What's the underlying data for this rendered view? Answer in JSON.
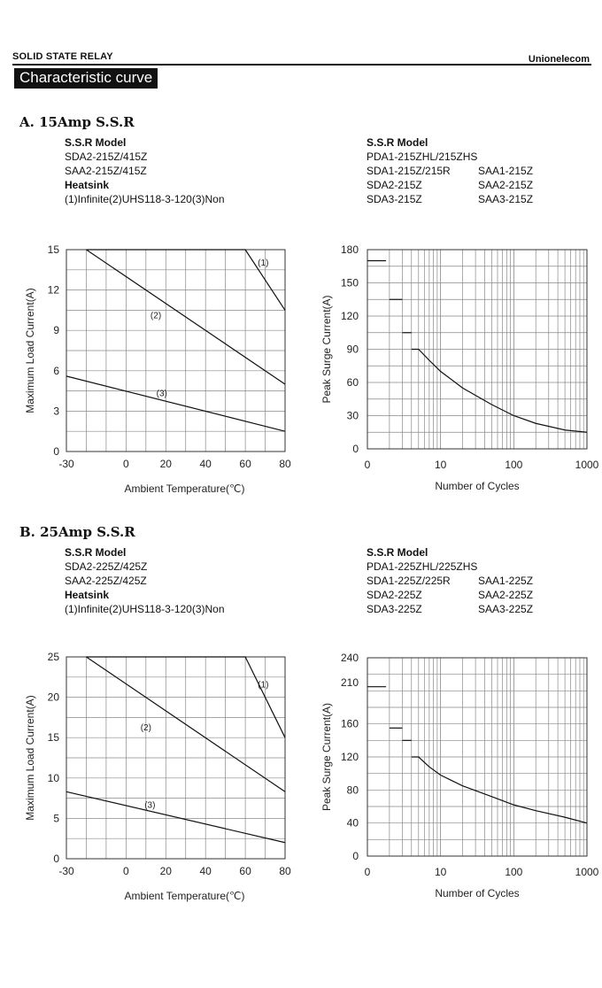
{
  "header": {
    "left": "SOLID STATE RELAY",
    "right": "Unionelecom"
  },
  "page_title": "Characteristic curve",
  "sections": [
    {
      "title": "A. 15Amp S.S.R",
      "left": {
        "model_heading": "S.S.R Model",
        "models": [
          "SDA2-215Z/415Z",
          "SAA2-215Z/415Z"
        ],
        "heatsink_heading": "Heatsink",
        "heatsink": "(1)Infinite(2)UHS118-3-120(3)Non"
      },
      "right": {
        "model_heading": "S.S.R Model",
        "line1": "PDA1-215ZHL/215ZHS",
        "rows": [
          [
            "SDA1-215Z/215R",
            "SAA1-215Z"
          ],
          [
            "SDA2-215Z",
            "SAA2-215Z"
          ],
          [
            "SDA3-215Z",
            "SAA3-215Z"
          ]
        ]
      }
    },
    {
      "title": "B. 25Amp S.S.R",
      "left": {
        "model_heading": "S.S.R Model",
        "models": [
          "SDA2-225Z/425Z",
          "SAA2-225Z/425Z"
        ],
        "heatsink_heading": "Heatsink",
        "heatsink": "(1)Infinite(2)UHS118-3-120(3)Non"
      },
      "right": {
        "model_heading": "S.S.R Model",
        "line1": "PDA1-225ZHL/225ZHS",
        "rows": [
          [
            "SDA1-225Z/225R",
            "SAA1-225Z"
          ],
          [
            "SDA2-225Z",
            "SAA2-225Z"
          ],
          [
            "SDA3-225Z",
            "SAA3-225Z"
          ]
        ]
      }
    }
  ],
  "chart_data": [
    {
      "type": "line",
      "xlabel": "Ambient Temperature(℃)",
      "ylabel": "Maximum Load Current(A)",
      "xlim": [
        -30,
        80
      ],
      "ylim": [
        0,
        15
      ],
      "xticks": [
        "-30",
        "0",
        "20",
        "40",
        "60",
        "80"
      ],
      "yticks": [
        "0",
        "3",
        "6",
        "9",
        "12",
        "15"
      ],
      "grid": true,
      "series": [
        {
          "name": "(1)",
          "x": [
            -20,
            60,
            80
          ],
          "y": [
            15,
            15,
            10.5
          ]
        },
        {
          "name": "(2)",
          "x": [
            -20,
            80
          ],
          "y": [
            15,
            5
          ]
        },
        {
          "name": "(3)",
          "x": [
            -30,
            80
          ],
          "y": [
            5.6,
            1.5
          ]
        }
      ]
    },
    {
      "type": "line",
      "xlabel": "Number of Cycles",
      "ylabel": "Peak Surge Current(A)",
      "xscale": "log",
      "xlim": [
        1,
        1000
      ],
      "ylim": [
        0,
        180
      ],
      "xticks": [
        "0",
        "10",
        "100",
        "1000"
      ],
      "yticks": [
        "0",
        "30",
        "60",
        "90",
        "120",
        "150",
        "180"
      ],
      "grid": true,
      "series": [
        {
          "x": [
            1,
            1.8
          ],
          "y": [
            170,
            170
          ]
        },
        {
          "x": [
            2,
            3
          ],
          "y": [
            135,
            135
          ]
        },
        {
          "x": [
            3,
            4
          ],
          "y": [
            105,
            105
          ]
        },
        {
          "x": [
            4,
            5,
            7,
            10,
            20,
            50,
            100,
            200,
            500,
            1000
          ],
          "y": [
            90,
            90,
            80,
            70,
            55,
            40,
            30,
            23,
            17,
            15
          ]
        }
      ]
    },
    {
      "type": "line",
      "xlabel": "Ambient Temperature(℃)",
      "ylabel": "Maximum Load Current(A)",
      "xlim": [
        -30,
        80
      ],
      "ylim": [
        0,
        25
      ],
      "xticks": [
        "-30",
        "0",
        "20",
        "40",
        "60",
        "80"
      ],
      "yticks": [
        "0",
        "5",
        "10",
        "15",
        "20",
        "25"
      ],
      "grid": true,
      "series": [
        {
          "name": "(1)",
          "x": [
            -20,
            60,
            80
          ],
          "y": [
            25,
            25,
            15
          ]
        },
        {
          "name": "(2)",
          "x": [
            -20,
            80
          ],
          "y": [
            25,
            8.3
          ]
        },
        {
          "name": "(3)",
          "x": [
            -30,
            80
          ],
          "y": [
            8.3,
            2
          ]
        }
      ]
    },
    {
      "type": "line",
      "xlabel": "Number of Cycles",
      "ylabel": "Peak Surge Current(A)",
      "xscale": "log",
      "xlim": [
        1,
        1000
      ],
      "ylim": [
        0,
        240
      ],
      "xticks": [
        "0",
        "10",
        "100",
        "1000"
      ],
      "yticks": [
        "0",
        "40",
        "80",
        "120",
        "160",
        "210",
        "240"
      ],
      "grid": true,
      "series": [
        {
          "x": [
            1,
            1.8
          ],
          "y": [
            205,
            205
          ]
        },
        {
          "x": [
            2,
            3
          ],
          "y": [
            155,
            155
          ]
        },
        {
          "x": [
            3,
            4
          ],
          "y": [
            140,
            140
          ]
        },
        {
          "x": [
            4,
            5,
            7,
            10,
            20,
            50,
            100,
            200,
            500,
            1000
          ],
          "y": [
            120,
            120,
            108,
            98,
            85,
            72,
            62,
            55,
            47,
            40
          ]
        }
      ]
    }
  ]
}
